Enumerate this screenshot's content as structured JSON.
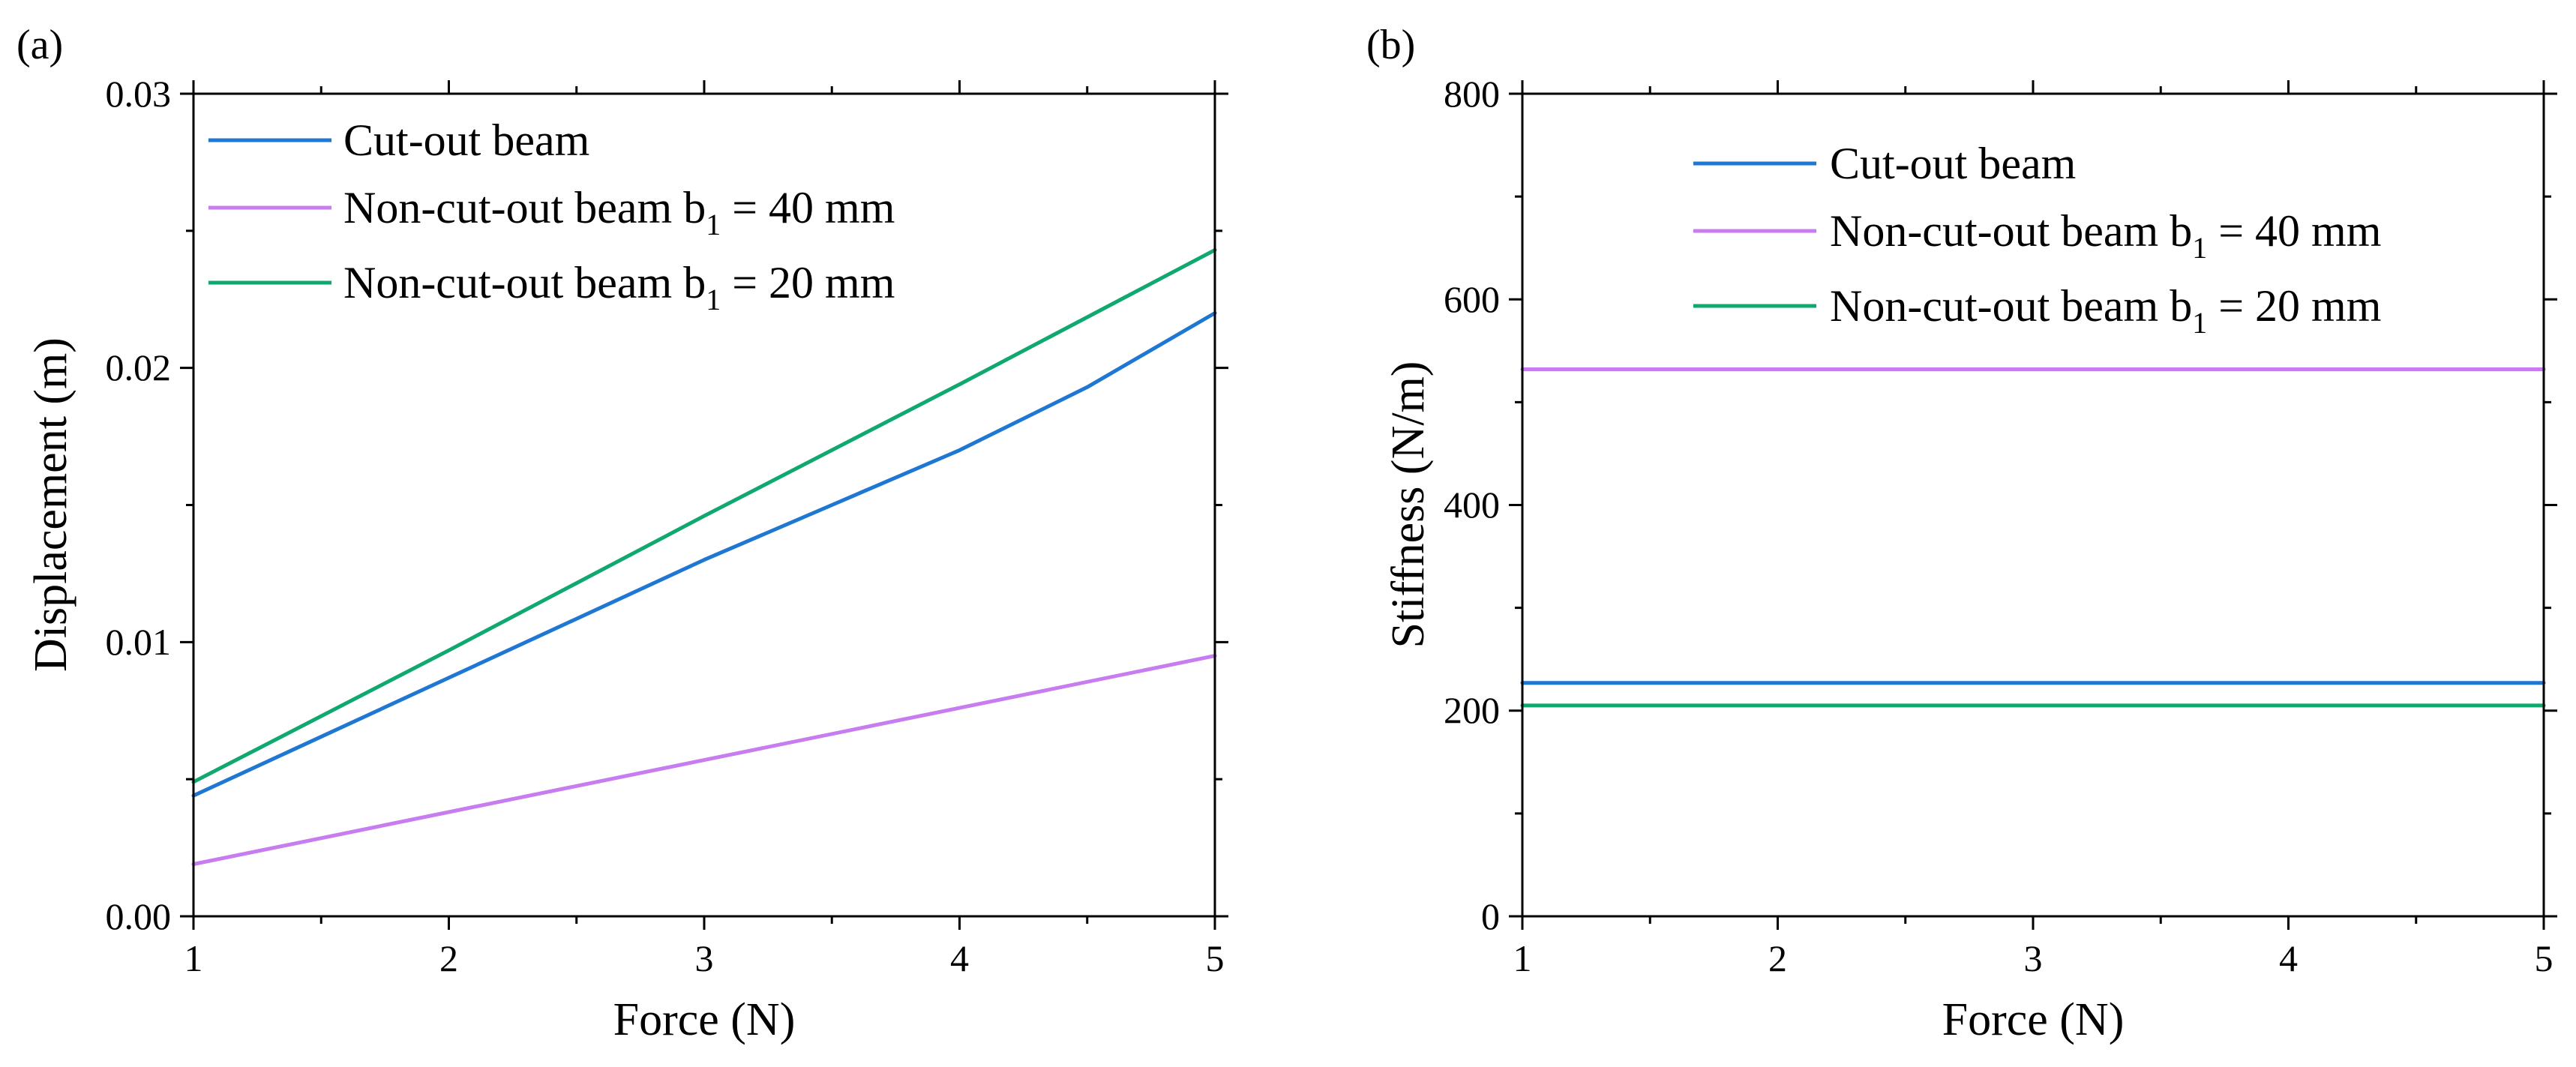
{
  "colors": {
    "cutout": "#1f77d4",
    "b40": "#c77cf0",
    "b20": "#0fa86e"
  },
  "chart_data": [
    {
      "type": "line",
      "panel_label": "(a)",
      "xlabel": "Force (N)",
      "ylabel": "Displacement (m)",
      "xlim": [
        1,
        5
      ],
      "ylim": [
        0,
        0.03
      ],
      "xticks": [
        1,
        2,
        3,
        4,
        5
      ],
      "xtick_labels": [
        "1",
        "2",
        "3",
        "4",
        "5"
      ],
      "yticks": [
        0,
        0.01,
        0.02,
        0.03
      ],
      "ytick_labels": [
        "0.00",
        "0.01",
        "0.02",
        "0.03"
      ],
      "legend_position": "top-left",
      "series": [
        {
          "name": "Cut-out beam",
          "legend_main": "Cut-out beam",
          "legend_sub": "",
          "legend_tail": "",
          "color": "#1f77d4",
          "x": [
            1,
            2,
            3,
            3.5,
            4,
            4.5,
            5
          ],
          "y": [
            0.0044,
            0.0087,
            0.013,
            0.015,
            0.017,
            0.0193,
            0.022
          ]
        },
        {
          "name": "Non-cut-out beam b1 = 40 mm",
          "legend_main": "Non-cut-out beam b",
          "legend_sub": "1",
          "legend_tail": " = 40 mm",
          "color": "#c77cf0",
          "x": [
            1,
            2,
            3,
            4,
            5
          ],
          "y": [
            0.0019,
            0.0038,
            0.0057,
            0.0076,
            0.0095
          ]
        },
        {
          "name": "Non-cut-out beam b1 = 20 mm",
          "legend_main": "Non-cut-out beam b",
          "legend_sub": "1",
          "legend_tail": " = 20 mm",
          "color": "#0fa86e",
          "x": [
            1,
            2,
            3,
            4,
            5
          ],
          "y": [
            0.0049,
            0.0097,
            0.0146,
            0.0194,
            0.0243
          ]
        }
      ]
    },
    {
      "type": "line",
      "panel_label": "(b)",
      "xlabel": "Force (N)",
      "ylabel": "Stiffness (N/m)",
      "xlim": [
        1,
        5
      ],
      "ylim": [
        0,
        800
      ],
      "xticks": [
        1,
        2,
        3,
        4,
        5
      ],
      "xtick_labels": [
        "1",
        "2",
        "3",
        "4",
        "5"
      ],
      "yticks": [
        0,
        200,
        400,
        600,
        800
      ],
      "ytick_labels": [
        "0",
        "200",
        "400",
        "600",
        "800"
      ],
      "legend_position": "top-center",
      "series": [
        {
          "name": "Cut-out beam",
          "legend_main": "Cut-out beam",
          "legend_sub": "",
          "legend_tail": "",
          "color": "#1f77d4",
          "x": [
            1,
            5
          ],
          "y": [
            227,
            227
          ]
        },
        {
          "name": "Non-cut-out beam b1 = 40 mm",
          "legend_main": "Non-cut-out beam b",
          "legend_sub": "1",
          "legend_tail": " = 40 mm",
          "color": "#c77cf0",
          "x": [
            1,
            5
          ],
          "y": [
            532,
            532
          ]
        },
        {
          "name": "Non-cut-out beam b1 = 20 mm",
          "legend_main": "Non-cut-out beam b",
          "legend_sub": "1",
          "legend_tail": " = 20 mm",
          "color": "#0fa86e",
          "x": [
            1,
            5
          ],
          "y": [
            205,
            205
          ]
        }
      ]
    }
  ]
}
